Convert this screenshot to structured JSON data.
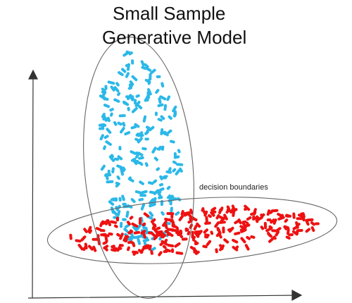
{
  "title": {
    "line1": "Small Sample",
    "line2": "Generative Model"
  },
  "annotation": {
    "label": "decision boundaries"
  },
  "clusters": {
    "blue": {
      "color": "#2bb8e8",
      "description_icon": "blue-dots"
    },
    "red": {
      "color": "#ee1111",
      "description_icon": "red-dots"
    }
  },
  "colors": {
    "axis": "#333333",
    "ellipse": "#666666"
  }
}
